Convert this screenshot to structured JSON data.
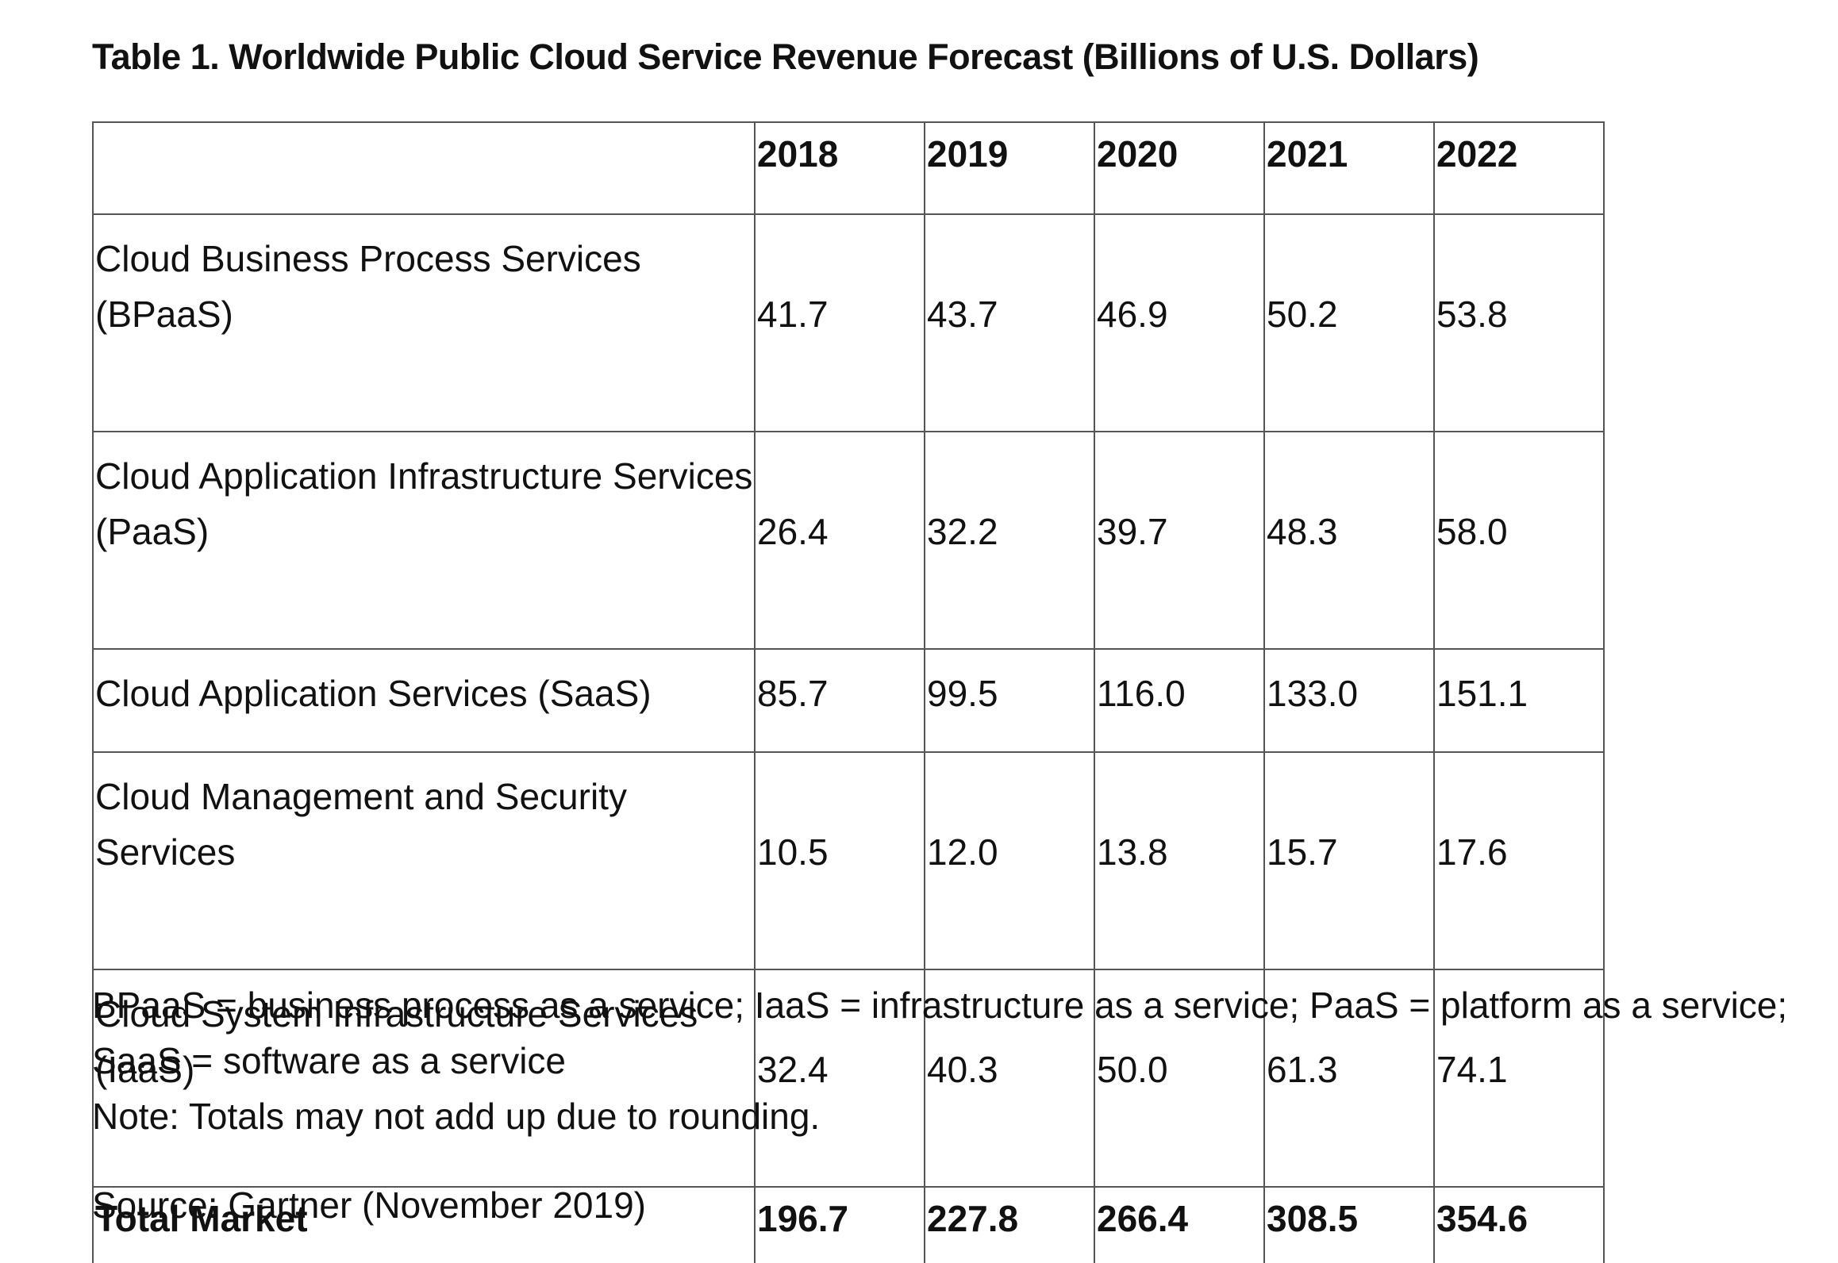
{
  "title": "Table 1. Worldwide Public Cloud Service Revenue Forecast (Billions of U.S. Dollars)",
  "table": {
    "columns": [
      "2018",
      "2019",
      "2020",
      "2021",
      "2022"
    ],
    "rows": [
      {
        "label": "Cloud Business Process Services (BPaaS)",
        "values": [
          "41.7",
          "43.7",
          "46.9",
          "50.2",
          "53.8"
        ]
      },
      {
        "label": "Cloud Application Infrastructure Services (PaaS)",
        "values": [
          "26.4",
          "32.2",
          "39.7",
          "48.3",
          "58.0"
        ]
      },
      {
        "label": "Cloud Application Services (SaaS)",
        "values": [
          "85.7",
          "99.5",
          "116.0",
          "133.0",
          "151.1"
        ]
      },
      {
        "label": "Cloud Management and Security Services",
        "values": [
          "10.5",
          "12.0",
          "13.8",
          "15.7",
          "17.6"
        ]
      },
      {
        "label": "Cloud System Infrastructure Services (IaaS)",
        "values": [
          "32.4",
          "40.3",
          "50.0",
          "61.3",
          "74.1"
        ]
      }
    ],
    "total": {
      "label": "Total Market",
      "values": [
        "196.7",
        "227.8",
        "266.4",
        "308.5",
        "354.6"
      ]
    }
  },
  "footnotes": [
    "BPaaS = business process as a service; IaaS = infrastructure as a service; PaaS = platform as a service; SaaS = software as a service",
    "Note: Totals may not add up due to rounding."
  ],
  "source": "Source: Gartner (November 2019)"
}
